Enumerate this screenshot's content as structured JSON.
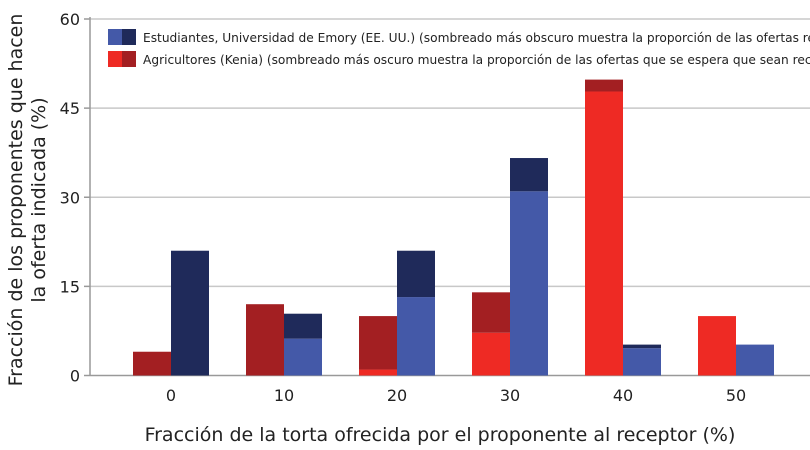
{
  "chart_data": {
    "type": "bar",
    "stacked_shading": true,
    "categories": [
      "0",
      "10",
      "20",
      "30",
      "40",
      "50"
    ],
    "xlabel": "Fracción de la torta ofrecida por el proponente al receptor (%)",
    "ylabel": "Fracción de los proponentes que hacen la oferta indicada (%)",
    "ylabel_lines": [
      "Fracción de los proponentes que hacen",
      "la oferta indicada (%)"
    ],
    "ylim": [
      0,
      60
    ],
    "yticks": [
      0,
      15,
      30,
      45,
      60
    ],
    "grid": true,
    "legend_position": "top",
    "series": [
      {
        "name": "Agricultores (Kenia) (sombreado más oscuro muestra la proporción de las ofertas que se espera que sean rechazadas",
        "total": [
          4,
          12,
          10,
          14,
          49.8,
          10
        ],
        "rejected": [
          4,
          12,
          9,
          6.8,
          2,
          0
        ],
        "colors": {
          "light": "#ee2a24",
          "dark": "#a31f22"
        }
      },
      {
        "name": "Estudiantes, Universidad de Emory (EE. UU.) (sombreado más obscuro muestra la proporción de las ofertas rechazadas)",
        "total": [
          21,
          10.4,
          21,
          36.6,
          5.2,
          5.2
        ],
        "rejected": [
          21,
          4.2,
          7.8,
          5.6,
          0.6,
          0
        ],
        "colors": {
          "light": "#4459a8",
          "dark": "#1f2a5a"
        }
      }
    ]
  }
}
